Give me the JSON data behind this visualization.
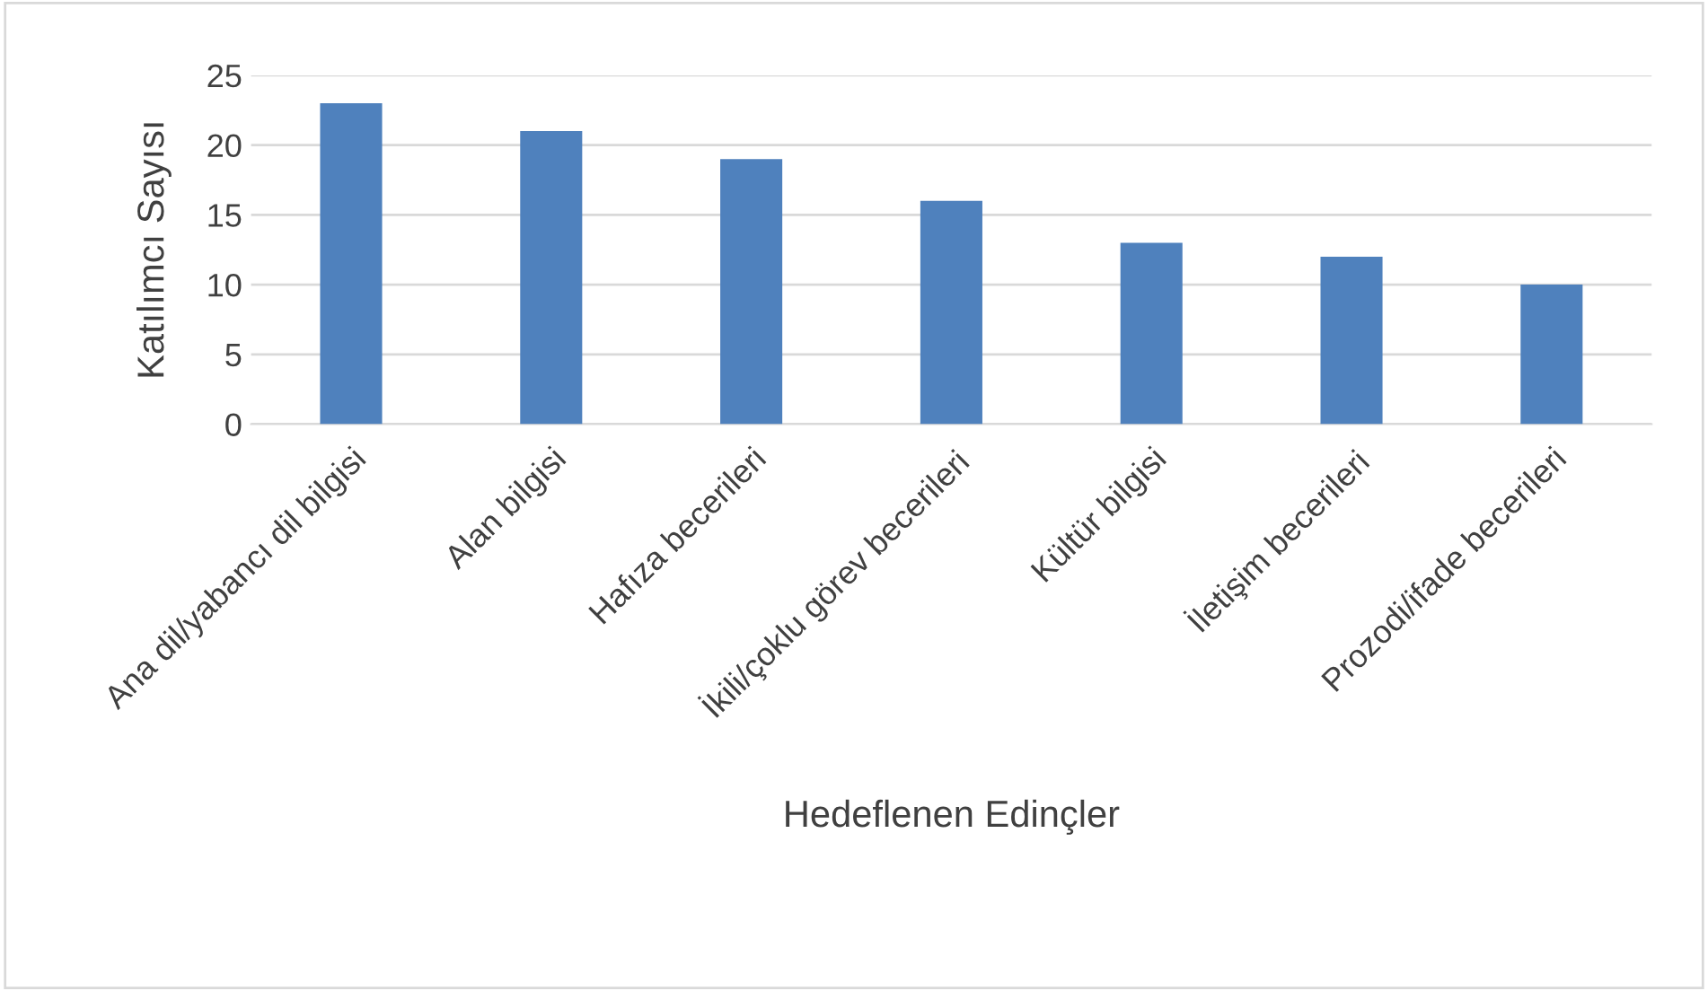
{
  "chart_data": {
    "type": "bar",
    "xlabel": "Hedeflenen Edinçler",
    "ylabel": "Katılımcı Sayısı",
    "categories": [
      "Ana dil/yabancı dil bilgisi",
      "Alan bilgisi",
      "Hafıza becerileri",
      "İkili/çoklu görev becerileri",
      "Kültür bilgisi",
      "İletişim becerileri",
      "Prozodi/ifade becerileri"
    ],
    "values": [
      23,
      21,
      19,
      16,
      13,
      12,
      10
    ],
    "color": "#4f81bd",
    "ylim": [
      0,
      25
    ],
    "yticks": [
      0,
      5,
      10,
      15,
      20,
      25
    ],
    "grid": "y",
    "legend": false
  }
}
